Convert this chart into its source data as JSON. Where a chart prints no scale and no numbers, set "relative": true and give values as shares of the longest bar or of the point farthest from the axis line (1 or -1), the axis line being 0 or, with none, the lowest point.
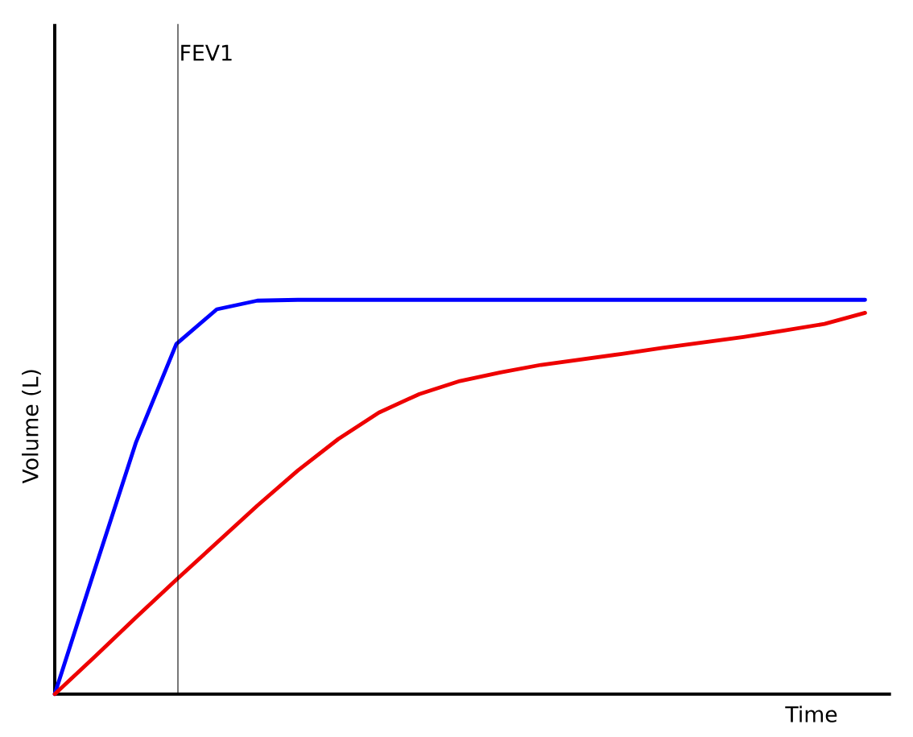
{
  "chart_data": {
    "type": "line",
    "relative": true,
    "xlabel": "Time",
    "ylabel": "Volume (L)",
    "annotations": [
      "FEV1"
    ],
    "categories": [
      null,
      null,
      null,
      null,
      null,
      null,
      null,
      null,
      null,
      null,
      null,
      null,
      null,
      null,
      null,
      null,
      null,
      null,
      null,
      null,
      null
    ],
    "series": [
      {
        "color": "#0000ff",
        "values": [
          0,
          0.32,
          0.637,
          0.888,
          0.976,
          0.998,
          1,
          1,
          1,
          1,
          1,
          1,
          1,
          1,
          1,
          1,
          1,
          1,
          1,
          1,
          1
        ]
      },
      {
        "color": "#ee0000",
        "values": [
          0,
          0.096,
          0.194,
          0.29,
          0.384,
          0.478,
          0.567,
          0.647,
          0.714,
          0.761,
          0.794,
          0.816,
          0.835,
          0.849,
          0.863,
          0.878,
          0.892,
          0.906,
          0.922,
          0.939,
          0.967
        ]
      }
    ]
  }
}
